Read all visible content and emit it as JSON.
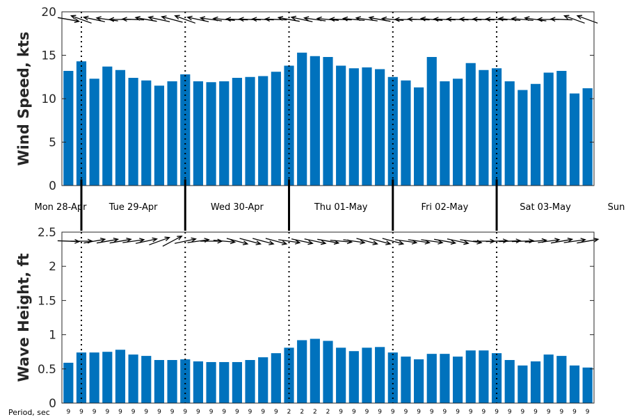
{
  "chart_data": [
    {
      "type": "bar",
      "ylabel": "Wind Speed, kts",
      "ylim": [
        0,
        20
      ],
      "yticks": [
        "0",
        "5",
        "10",
        "15",
        "20"
      ],
      "values": [
        13.2,
        14.3,
        12.3,
        13.7,
        13.3,
        12.4,
        12.1,
        11.5,
        12.0,
        12.8,
        12.0,
        11.9,
        12.0,
        12.4,
        12.5,
        12.6,
        13.1,
        13.8,
        15.3,
        14.9,
        14.8,
        13.8,
        13.5,
        13.6,
        13.4,
        12.5,
        12.1,
        11.3,
        14.8,
        12.0,
        12.3,
        14.1,
        13.3,
        13.5,
        12.0,
        11.0,
        11.7,
        13.0,
        13.2,
        10.6,
        11.2
      ],
      "arrow_direction_deg": [
        -10,
        160,
        168,
        172,
        180,
        178,
        170,
        168,
        165,
        160,
        168,
        172,
        175,
        178,
        178,
        178,
        178,
        170,
        168,
        172,
        175,
        178,
        175,
        172,
        170,
        175,
        180,
        178,
        175,
        178,
        178,
        178,
        178,
        178,
        175,
        175,
        172,
        180,
        178,
        160,
        160
      ],
      "color": "#0072bd",
      "grid": "off"
    },
    {
      "type": "bar",
      "ylabel": "Wave Height, ft",
      "ylim": [
        0,
        2.5
      ],
      "yticks": [
        "0",
        "0.5",
        "1",
        "1.5",
        "2",
        "2.5"
      ],
      "values": [
        0.59,
        0.74,
        0.74,
        0.75,
        0.78,
        0.71,
        0.69,
        0.63,
        0.63,
        0.64,
        0.61,
        0.6,
        0.6,
        0.6,
        0.63,
        0.67,
        0.73,
        0.81,
        0.92,
        0.94,
        0.91,
        0.81,
        0.76,
        0.81,
        0.82,
        0.74,
        0.68,
        0.64,
        0.72,
        0.72,
        0.68,
        0.77,
        0.77,
        0.73,
        0.63,
        0.55,
        0.61,
        0.71,
        0.69,
        0.55,
        0.52
      ],
      "arrow_direction_deg": [
        -2,
        0,
        10,
        10,
        10,
        8,
        12,
        20,
        28,
        12,
        8,
        0,
        355,
        345,
        345,
        345,
        345,
        352,
        348,
        348,
        350,
        355,
        352,
        345,
        345,
        345,
        352,
        352,
        352,
        350,
        348,
        352,
        0,
        2,
        2,
        2,
        5,
        8,
        10,
        8,
        10
      ],
      "periods": [
        "9",
        "9",
        "9",
        "9",
        "9",
        "9",
        "9",
        "9",
        "9",
        "9",
        "9",
        "9",
        "9",
        "9",
        "9",
        "9",
        "9",
        "2",
        "2",
        "2",
        "2",
        "9",
        "9",
        "9",
        "9",
        "9",
        "9",
        "9",
        "9",
        "9",
        "9",
        "9",
        "9",
        "9",
        "9",
        "9",
        "9",
        "9",
        "9",
        "9",
        "9"
      ],
      "period_label": "Period, sec",
      "color": "#0072bd",
      "grid": "off"
    }
  ],
  "days": [
    "Mon 28-Apr",
    "Tue 29-Apr",
    "Wed 30-Apr",
    "Thu 01-May",
    "Fri 02-May",
    "Sat 03-May",
    "Sun"
  ],
  "day_boundary_bar_index": [
    1,
    9,
    17,
    25,
    33
  ]
}
